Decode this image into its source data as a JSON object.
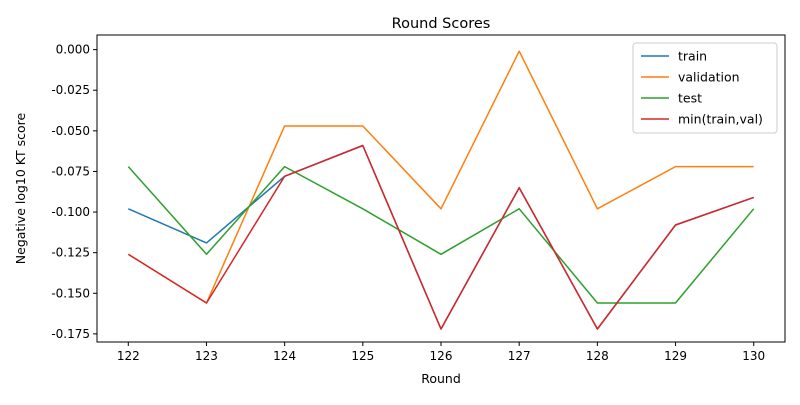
{
  "chart_data": {
    "type": "line",
    "title": "Round Scores",
    "xlabel": "Round",
    "ylabel": "Negative log10 KT score",
    "x": [
      122,
      123,
      124,
      125,
      126,
      127,
      128,
      129,
      130
    ],
    "xlim": [
      121.6,
      130.4
    ],
    "ylim": [
      -0.18,
      0.009
    ],
    "yticks": [
      "0.000",
      "-0.025",
      "-0.050",
      "-0.075",
      "-0.100",
      "-0.125",
      "-0.150",
      "-0.175"
    ],
    "ytick_values": [
      0.0,
      -0.025,
      -0.05,
      -0.075,
      -0.1,
      -0.125,
      -0.15,
      -0.175
    ],
    "grid": false,
    "legend_position": "top-right",
    "series": [
      {
        "name": "train",
        "color": "#1f77b4",
        "values": [
          -0.098,
          -0.119,
          -0.078,
          -0.059,
          -0.172,
          -0.085,
          -0.172,
          -0.108,
          -0.091
        ]
      },
      {
        "name": "validation",
        "color": "#ff7f0e",
        "values": [
          -0.126,
          -0.156,
          -0.047,
          -0.047,
          -0.098,
          -0.001,
          -0.098,
          -0.072,
          -0.072
        ]
      },
      {
        "name": "test",
        "color": "#2ca02c",
        "values": [
          -0.072,
          -0.126,
          -0.072,
          -0.098,
          -0.126,
          -0.098,
          -0.156,
          -0.156,
          -0.098
        ]
      },
      {
        "name": "min(train,val)",
        "color": "#d62728",
        "values": [
          -0.126,
          -0.156,
          -0.078,
          -0.059,
          -0.172,
          -0.085,
          -0.172,
          -0.108,
          -0.091
        ]
      }
    ]
  }
}
